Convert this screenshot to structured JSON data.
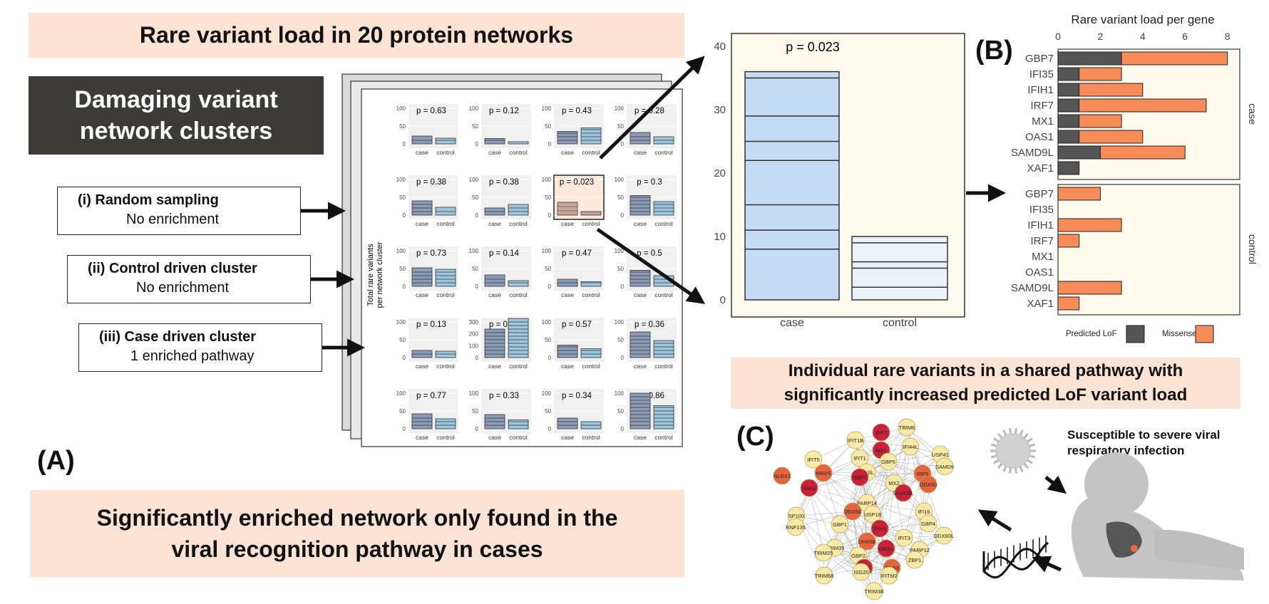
{
  "title": "Rare variant load in 20 protein networks",
  "damaging_box": {
    "line1": "Damaging variant",
    "line2": "network clusters"
  },
  "scenarios": [
    {
      "title": "(i) Random sampling",
      "subtitle": "No enrichment"
    },
    {
      "title": "(ii) Control driven cluster",
      "subtitle": "No enrichment"
    },
    {
      "title": "(iii) Case driven cluster",
      "subtitle": "1 enriched pathway"
    }
  ],
  "panel_labels": {
    "a": "(A)",
    "b": "(B)",
    "c": "(C)"
  },
  "conclusion": {
    "line1": "Significantly enriched network only found in the",
    "line2": "viral recognition pathway in cases"
  },
  "shared_pathway": {
    "line1": "Individual rare variants in a shared pathway with",
    "line2": "significantly increased predicted LoF variant load"
  },
  "susceptible_text": {
    "line1": "Susceptible to severe viral",
    "line2": "respiratory infection"
  },
  "colors": {
    "case_fill": "#c6dcf3",
    "control_fill": "#eaf2f8",
    "lof": "#555555",
    "missense": "#f78b5a",
    "band": "#fbe3d6",
    "highlight": "#fde9dc"
  },
  "chart_data": [
    {
      "type": "bar",
      "title": "",
      "ylabel": "Total rare variants per network cluster",
      "categories": [
        "case",
        "control"
      ],
      "y_ticks": [
        "0",
        "50",
        "100"
      ],
      "y_ticks_large": [
        "0",
        "100",
        "200",
        "300"
      ],
      "panels": [
        {
          "p": "p = 0.63",
          "case": 22,
          "control": 16
        },
        {
          "p": "p = 0.12",
          "case": 15,
          "control": 6
        },
        {
          "p": "p = 0.43",
          "case": 35,
          "control": 45
        },
        {
          "p": "p = 0.28",
          "case": 32,
          "control": 20
        },
        {
          "p": "p = 0.38",
          "case": 40,
          "control": 22
        },
        {
          "p": "p = 0.38",
          "case": 20,
          "control": 30
        },
        {
          "p": "p = 0.023",
          "case": 36,
          "control": 10,
          "highlight": true
        },
        {
          "p": "p = 0.3",
          "case": 55,
          "control": 38
        },
        {
          "p": "p = 0.73",
          "case": 52,
          "control": 48
        },
        {
          "p": "p = 0.14",
          "case": 32,
          "control": 16
        },
        {
          "p": "p = 0.47",
          "case": 20,
          "control": 13
        },
        {
          "p": "p = 0.5",
          "case": 45,
          "control": 30
        },
        {
          "p": "p = 0.13",
          "case": 20,
          "control": 18
        },
        {
          "p": "p = 0.54",
          "case": 240,
          "control": 330,
          "scale": 300
        },
        {
          "p": "p = 0.57",
          "case": 35,
          "control": 25
        },
        {
          "p": "p = 0.36",
          "case": 72,
          "control": 48
        },
        {
          "p": "p = 0.77",
          "case": 42,
          "control": 28
        },
        {
          "p": "p = 0.33",
          "case": 40,
          "control": 25
        },
        {
          "p": "p = 0.34",
          "case": 30,
          "control": 20
        },
        {
          "p": "p = 0.86",
          "case": 100,
          "control": 65
        }
      ]
    },
    {
      "type": "bar",
      "title": "",
      "annotation": "p = 0.023",
      "categories": [
        "case",
        "control"
      ],
      "values": [
        36,
        10
      ],
      "segment_breaks": {
        "case": [
          8,
          11,
          15,
          22,
          25,
          29,
          35
        ],
        "control": [
          2,
          5,
          6,
          9
        ]
      },
      "ylim": [
        0,
        40
      ],
      "y_ticks": [
        "0",
        "10",
        "20",
        "30",
        "40"
      ]
    },
    {
      "type": "bar",
      "title": "Rare variant load per gene",
      "x_ticks": [
        "0",
        "2",
        "4",
        "6",
        "8"
      ],
      "xlim": [
        0,
        8
      ],
      "genes": [
        "GBP7",
        "IFI35",
        "IFIH1",
        "IRF7",
        "MX1",
        "OAS1",
        "SAMD9L",
        "XAF1"
      ],
      "facets": [
        "case",
        "control"
      ],
      "series": [
        {
          "name": "Predicted LoF",
          "case": [
            3,
            1,
            1,
            1,
            1,
            1,
            2,
            1
          ],
          "control": [
            0,
            0,
            0,
            0,
            0,
            0,
            0,
            0
          ]
        },
        {
          "name": "Missense",
          "case": [
            5,
            2,
            3,
            6,
            2,
            3,
            4,
            0
          ],
          "control": [
            2,
            0,
            3,
            1,
            0,
            0,
            3,
            1
          ]
        }
      ],
      "legend": {
        "lof": "Predicted LoF",
        "missense": "Missense"
      }
    }
  ],
  "network": {
    "nodes": [
      {
        "label": "IRF7",
        "kind": "dark"
      },
      {
        "label": "TRIM6",
        "kind": "light"
      },
      {
        "label": "IFIT1B",
        "kind": "light"
      },
      {
        "label": "MX1",
        "kind": "dark"
      },
      {
        "label": "IFI44L",
        "kind": "light"
      },
      {
        "label": "USP41",
        "kind": "light"
      },
      {
        "label": "IFIT5",
        "kind": "light"
      },
      {
        "label": "IFIT1",
        "kind": "light"
      },
      {
        "label": "GBP5",
        "kind": "light"
      },
      {
        "label": "SAMD9",
        "kind": "light"
      },
      {
        "label": "OASL",
        "kind": "light"
      },
      {
        "label": "IRF5",
        "kind": "mid"
      },
      {
        "label": "NLRX1",
        "kind": "mid"
      },
      {
        "label": "MAVS",
        "kind": "mid"
      },
      {
        "label": "GBP7",
        "kind": "dark"
      },
      {
        "label": "DDX60",
        "kind": "mid"
      },
      {
        "label": "XAF1",
        "kind": "dark"
      },
      {
        "label": "MX2",
        "kind": "light"
      },
      {
        "label": "SAMD9L",
        "kind": "dark"
      },
      {
        "label": "PARP14",
        "kind": "light"
      },
      {
        "label": "DDX58",
        "kind": "mid"
      },
      {
        "label": "USP18",
        "kind": "light"
      },
      {
        "label": "IFI16",
        "kind": "light"
      },
      {
        "label": "SP100",
        "kind": "light"
      },
      {
        "label": "RNF135",
        "kind": "light"
      },
      {
        "label": "GBP1",
        "kind": "light"
      },
      {
        "label": "IFIH1",
        "kind": "dark"
      },
      {
        "label": "GBP4",
        "kind": "light"
      },
      {
        "label": "DDX60L",
        "kind": "light"
      },
      {
        "label": "DHX58",
        "kind": "mid"
      },
      {
        "label": "IFIT3",
        "kind": "light"
      },
      {
        "label": "TRIM35",
        "kind": "light"
      },
      {
        "label": "OAS1",
        "kind": "dark"
      },
      {
        "label": "PARP12",
        "kind": "light"
      },
      {
        "label": "TRIM25",
        "kind": "light"
      },
      {
        "label": "GBP2",
        "kind": "light"
      },
      {
        "label": "ZBP1",
        "kind": "light"
      },
      {
        "label": "IFI35",
        "kind": "dark"
      },
      {
        "label": "OAS3",
        "kind": "mid"
      },
      {
        "label": "TRIM68",
        "kind": "light"
      },
      {
        "label": "ISG20",
        "kind": "light"
      },
      {
        "label": "IFITM2",
        "kind": "light"
      },
      {
        "label": "TRIM38",
        "kind": "light"
      }
    ]
  }
}
